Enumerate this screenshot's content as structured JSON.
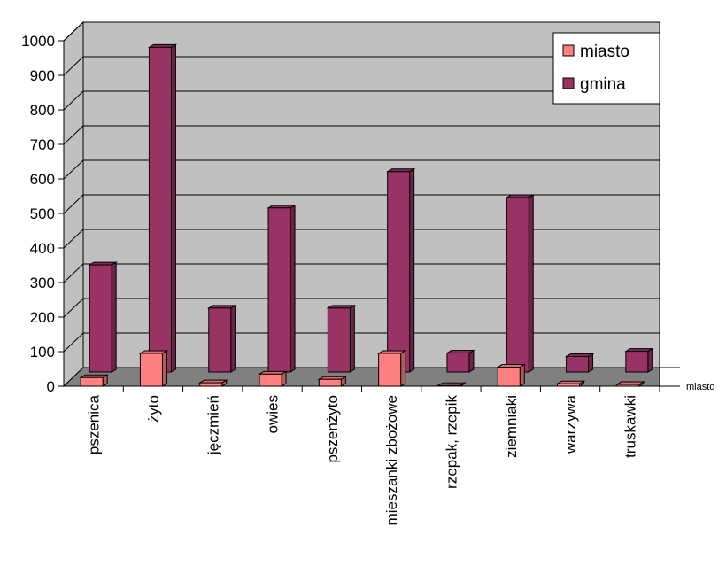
{
  "chart_data": {
    "type": "bar",
    "categories": [
      "pszenica",
      "żyto",
      "jęczmień",
      "owies",
      "pszenżyto",
      "mieszanki zbożowe",
      "rzepak, rzepik",
      "ziemniaki",
      "warzywa",
      "truskawki"
    ],
    "series": [
      {
        "name": "miasto",
        "values": [
          25,
          95,
          10,
          35,
          20,
          95,
          2,
          55,
          7,
          5
        ]
      },
      {
        "name": "gmina",
        "values": [
          310,
          940,
          185,
          475,
          185,
          580,
          55,
          505,
          45,
          60
        ]
      }
    ],
    "ylim": [
      0,
      1000
    ],
    "yticks": [
      0,
      100,
      200,
      300,
      400,
      500,
      600,
      700,
      800,
      900,
      1000
    ],
    "depth_axis_label": "miasto",
    "legend_position": "top-right",
    "grid": true,
    "colors": {
      "miasto": "#ff8080",
      "gmina": "#993366",
      "wall": "#c0c0c0",
      "floor": "#808080"
    }
  }
}
